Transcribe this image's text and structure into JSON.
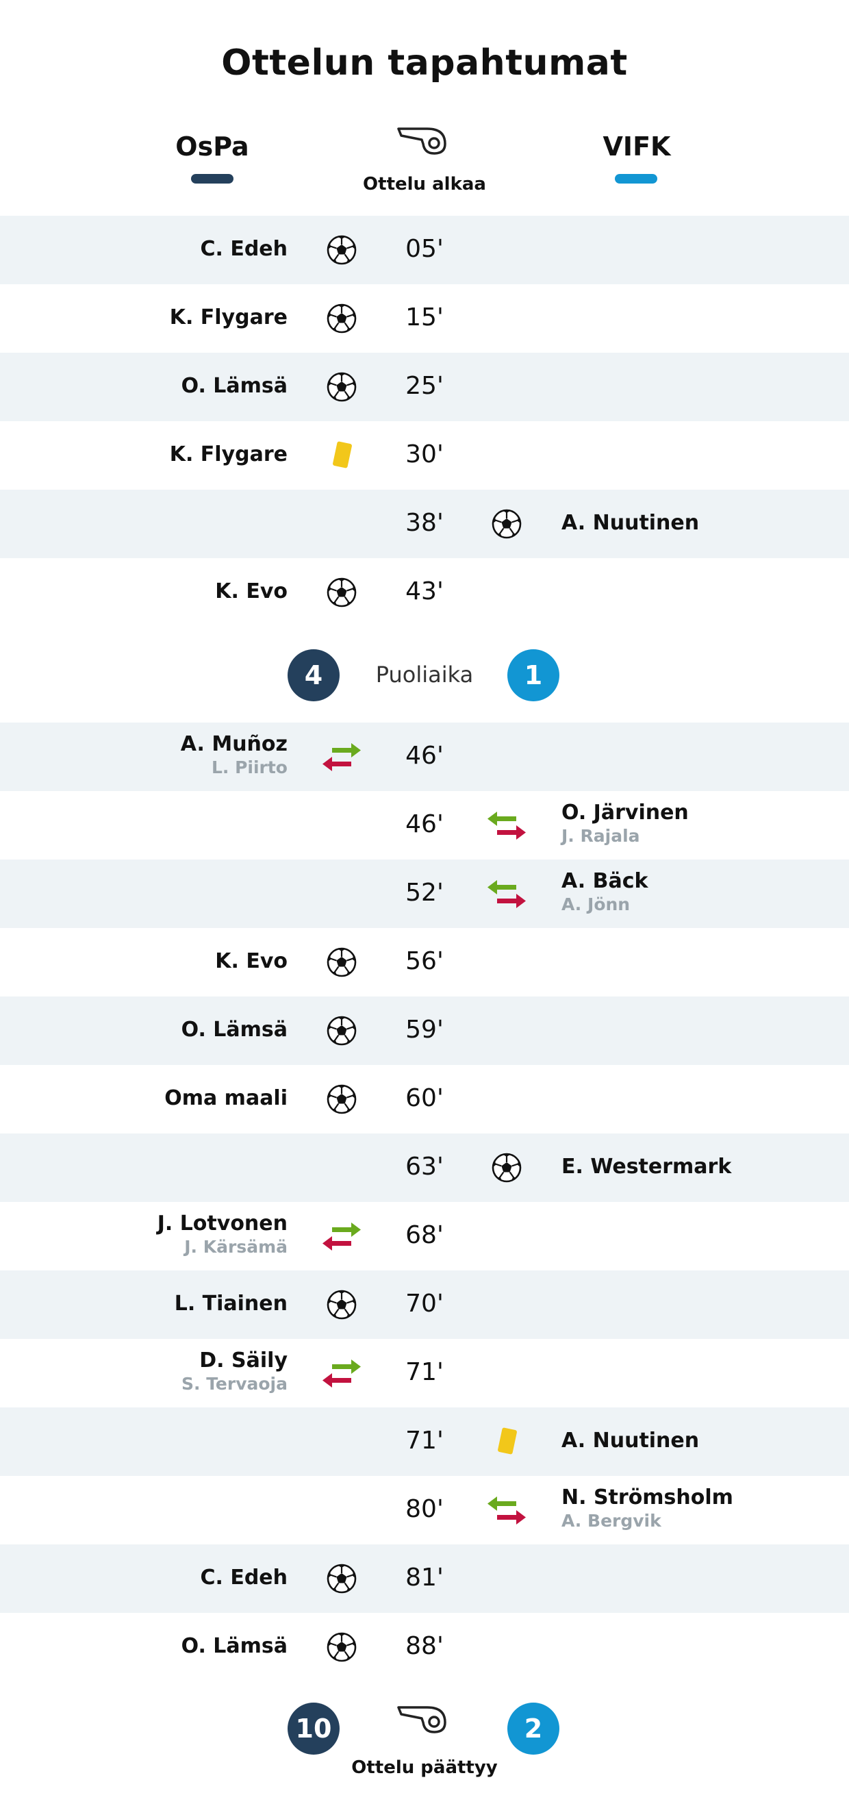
{
  "title": "Ottelun tapahtumat",
  "teams": {
    "home": {
      "name": "OsPa",
      "color": "#24405c"
    },
    "away": {
      "name": "VIFK",
      "color": "#1296d3"
    }
  },
  "captions": {
    "start": "Ottelu alkaa",
    "end": "Ottelu päättyy",
    "halftime": "Puoliaika"
  },
  "halftime_score": {
    "home": "4",
    "away": "1"
  },
  "final_score": {
    "home": "10",
    "away": "2"
  },
  "colors": {
    "row_shade": "#eef3f6",
    "yellow_card": "#f2c71a",
    "sub_in": "#6aaa1e",
    "sub_out": "#c2123f"
  },
  "events_first_half": [
    {
      "minute": "05'",
      "side": "home",
      "type": "goal",
      "player": "C. Edeh"
    },
    {
      "minute": "15'",
      "side": "home",
      "type": "goal",
      "player": "K. Flygare"
    },
    {
      "minute": "25'",
      "side": "home",
      "type": "goal",
      "player": "O. Lämsä"
    },
    {
      "minute": "30'",
      "side": "home",
      "type": "yellow",
      "player": "K. Flygare"
    },
    {
      "minute": "38'",
      "side": "away",
      "type": "goal",
      "player": "A. Nuutinen"
    },
    {
      "minute": "43'",
      "side": "home",
      "type": "goal",
      "player": "K. Evo"
    }
  ],
  "events_second_half": [
    {
      "minute": "46'",
      "side": "home",
      "type": "sub",
      "player": "A. Muñoz",
      "sub": "L. Piirto"
    },
    {
      "minute": "46'",
      "side": "away",
      "type": "sub",
      "player": "O. Järvinen",
      "sub": "J. Rajala"
    },
    {
      "minute": "52'",
      "side": "away",
      "type": "sub",
      "player": "A. Bäck",
      "sub": "A. Jönn"
    },
    {
      "minute": "56'",
      "side": "home",
      "type": "goal",
      "player": "K. Evo"
    },
    {
      "minute": "59'",
      "side": "home",
      "type": "goal",
      "player": "O. Lämsä"
    },
    {
      "minute": "60'",
      "side": "home",
      "type": "goal",
      "player": "Oma maali"
    },
    {
      "minute": "63'",
      "side": "away",
      "type": "goal",
      "player": "E. Westermark"
    },
    {
      "minute": "68'",
      "side": "home",
      "type": "sub",
      "player": "J. Lotvonen",
      "sub": "J. Kärsämä"
    },
    {
      "minute": "70'",
      "side": "home",
      "type": "goal",
      "player": "L. Tiainen"
    },
    {
      "minute": "71'",
      "side": "home",
      "type": "sub",
      "player": "D. Säily",
      "sub": "S. Tervaoja"
    },
    {
      "minute": "71'",
      "side": "away",
      "type": "yellow",
      "player": "A. Nuutinen"
    },
    {
      "minute": "80'",
      "side": "away",
      "type": "sub",
      "player": "N. Strömsholm",
      "sub": "A. Bergvik"
    },
    {
      "minute": "81'",
      "side": "home",
      "type": "goal",
      "player": "C. Edeh"
    },
    {
      "minute": "88'",
      "side": "home",
      "type": "goal",
      "player": "O. Lämsä"
    }
  ]
}
